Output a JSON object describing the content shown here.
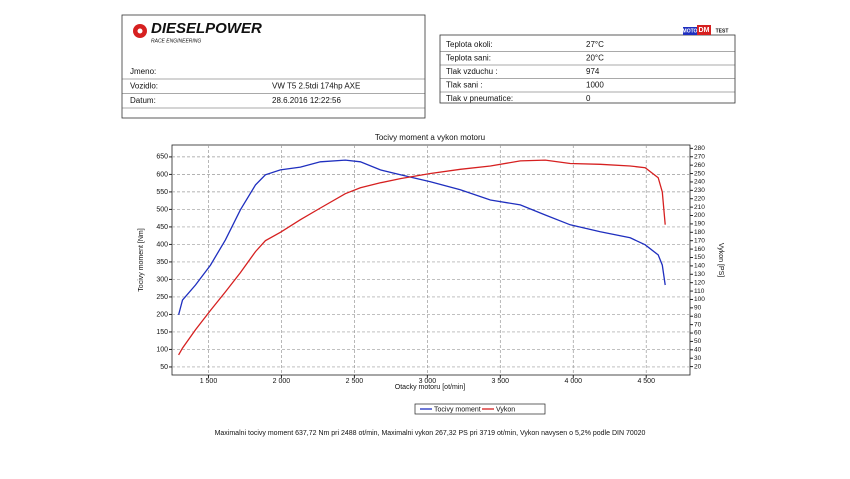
{
  "header": {
    "logo": "DIESELPOWER",
    "logo_sub": "RACE ENGINEERING",
    "left_fields": [
      {
        "label": "Jmeno:"
      },
      {
        "label": "Vozidlo:",
        "value": "VW T5 2.5tdi 174hp AXE"
      },
      {
        "label": "Datum:",
        "value": "28.6.2016 12:22:56"
      }
    ],
    "right_logo": [
      "MOTO",
      "DM",
      "TEST"
    ],
    "right_fields": [
      {
        "label": "Teplota okoli:",
        "value": "27°C"
      },
      {
        "label": "Teplota sani:",
        "value": "20°C"
      },
      {
        "label": "Tlak vzduchu :",
        "value": "974"
      },
      {
        "label": "Tlak sani :",
        "value": "1000"
      },
      {
        "label": "Tlak v pneumatice:",
        "value": "0"
      }
    ]
  },
  "chart_data": {
    "type": "line",
    "title": "Tocivy moment a vykon motoru",
    "x_label": "Otacky motoru [ot/min]",
    "y_label": "Tocivy moment [Nm]",
    "y2_label": "Vykon [PS]",
    "x": [
      1295,
      1322,
      1411,
      1514,
      1616,
      1719,
      1822,
      1890,
      1993,
      2130,
      2267,
      2438,
      2541,
      2678,
      2815,
      3021,
      3226,
      3432,
      3637,
      3808,
      3979,
      4185,
      4390,
      4493,
      4582,
      4610,
      4630
    ],
    "series": [
      {
        "name": "Tocivy moment",
        "color": "#1f2fbf",
        "values": [
          199,
          241,
          284,
          341,
          413,
          499,
          570,
          599,
          613,
          621,
          636,
          641,
          636,
          613,
          599,
          579,
          556,
          527,
          513,
          484,
          456,
          436,
          419,
          399,
          370,
          341,
          284
        ]
      },
      {
        "name": "Vykon",
        "color": "#d62020",
        "axis": "y2",
        "values": [
          34,
          42,
          64,
          87,
          109,
          132,
          157,
          170,
          180,
          195,
          209,
          226,
          233,
          239,
          244,
          250,
          255,
          259,
          265,
          266,
          262,
          261,
          259,
          257,
          245,
          228,
          189
        ]
      }
    ],
    "xlim": [
      1250,
      4800
    ],
    "xticks": [
      {
        "value": 1500,
        "label": "1 500"
      },
      {
        "value": 2000,
        "label": "2 000"
      },
      {
        "value": 2500,
        "label": "2 500"
      },
      {
        "value": 3000,
        "label": "3 000"
      },
      {
        "value": 3500,
        "label": "3 500"
      },
      {
        "value": 4000,
        "label": "4 000"
      },
      {
        "value": 4500,
        "label": "4 500"
      }
    ],
    "ylim": [
      27,
      684
    ],
    "yticks": [
      50,
      100,
      150,
      200,
      250,
      300,
      350,
      400,
      450,
      500,
      550,
      600,
      650
    ],
    "y2lim": [
      10,
      284
    ],
    "y2ticks": [
      20,
      30,
      40,
      50,
      60,
      70,
      80,
      90,
      100,
      110,
      120,
      130,
      140,
      150,
      160,
      170,
      180,
      190,
      200,
      210,
      220,
      230,
      240,
      250,
      260,
      270,
      280
    ],
    "grid": true,
    "legend": "bottom",
    "footnote": "Maximalni tocivy moment 637,72 Nm pri 2488 ot/min,  Maximalni vykon 267,32 PS pri 3719 ot/min,  Vykon navysen o 5,2% podle DIN 70020"
  }
}
